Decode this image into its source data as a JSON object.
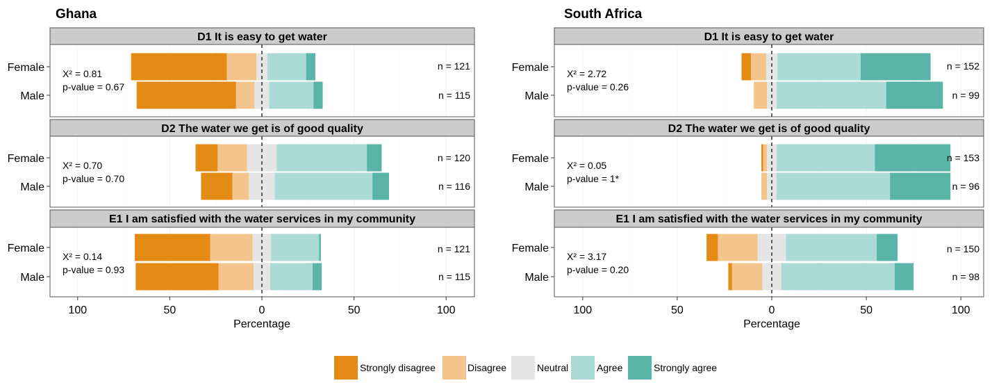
{
  "colors": {
    "strongly_disagree": "#e38b14",
    "disagree": "#f3c48b",
    "neutral": "#e5e5e5",
    "agree": "#acdad6",
    "strongly_agree": "#5ab4a7",
    "strip": "#cccccc",
    "frame": "#555555"
  },
  "chart_data": {
    "type": "bar",
    "orientation": "horizontal-diverging",
    "xlabel": "Percentage",
    "xlim": [
      -100,
      100
    ],
    "x_ticks": [
      -100,
      -50,
      0,
      50,
      100
    ],
    "x_tick_labels": [
      "100",
      "50",
      "0",
      "50",
      "100"
    ],
    "categories": [
      "Female",
      "Male"
    ],
    "legend": {
      "position": "bottom",
      "labels": [
        "Strongly disagree",
        "Disagree",
        "Neutral",
        "Agree",
        "Strongly agree"
      ]
    },
    "panels": [
      {
        "title": "Ghana",
        "facets": [
          {
            "strip": "D1 It is easy to get water",
            "stat_line1": "X² = 0.81",
            "stat_line2": "p-value = 0.67",
            "rows": [
              {
                "group": "Female",
                "n": "n = 121",
                "values": [
                  52,
                  16,
                  6,
                  21,
                  5
                ]
              },
              {
                "group": "Male",
                "n": "n = 115",
                "values": [
                  54,
                  10,
                  8,
                  24,
                  5
                ]
              }
            ]
          },
          {
            "strip": "D2 The water we get is of good quality",
            "stat_line1": "X² = 0.70",
            "stat_line2": "p-value = 0.70",
            "rows": [
              {
                "group": "Female",
                "n": "n = 120",
                "values": [
                  12,
                  16,
                  16,
                  49,
                  8
                ]
              },
              {
                "group": "Male",
                "n": "n = 116",
                "values": [
                  17,
                  9,
                  14,
                  53,
                  9
                ]
              }
            ]
          },
          {
            "strip": "E1 I am satisfied with the water services in my community",
            "stat_line1": "X² = 0.14",
            "stat_line2": "p-value = 0.93",
            "rows": [
              {
                "group": "Female",
                "n": "n = 121",
                "values": [
                  41,
                  23,
                  10,
                  26,
                  1
                ]
              },
              {
                "group": "Male",
                "n": "n = 115",
                "values": [
                  45,
                  19,
                  9,
                  23,
                  5
                ]
              }
            ]
          }
        ]
      },
      {
        "title": "South Africa",
        "facets": [
          {
            "strip": "D1 It is easy to get water",
            "stat_line1": "X² = 2.72",
            "stat_line2": "p-value = 0.26",
            "rows": [
              {
                "group": "Female",
                "n": "n = 152",
                "values": [
                  5,
                  8,
                  6,
                  44,
                  37
                ]
              },
              {
                "group": "Male",
                "n": "n = 99",
                "values": [
                  0,
                  7,
                  5,
                  58,
                  30
                ]
              }
            ]
          },
          {
            "strip": "D2 The water we get is of good quality",
            "stat_line1": "X² = 0.05",
            "stat_line2": "p-value = 1*",
            "rows": [
              {
                "group": "Female",
                "n": "n = 153",
                "values": [
                  1,
                  2,
                  5,
                  52,
                  40
                ]
              },
              {
                "group": "Male",
                "n": "n = 96",
                "values": [
                  0,
                  3,
                  5,
                  60,
                  32
                ]
              }
            ]
          },
          {
            "strip": "E1 I am satisfied with the water services in my community",
            "stat_line1": "X² = 3.17",
            "stat_line2": "p-value = 0.20",
            "rows": [
              {
                "group": "Female",
                "n": "n = 150",
                "values": [
                  6,
                  21,
                  15,
                  48,
                  11
                ]
              },
              {
                "group": "Male",
                "n": "n = 98",
                "values": [
                  2,
                  16,
                  10,
                  60,
                  10
                ]
              }
            ]
          }
        ]
      }
    ]
  }
}
